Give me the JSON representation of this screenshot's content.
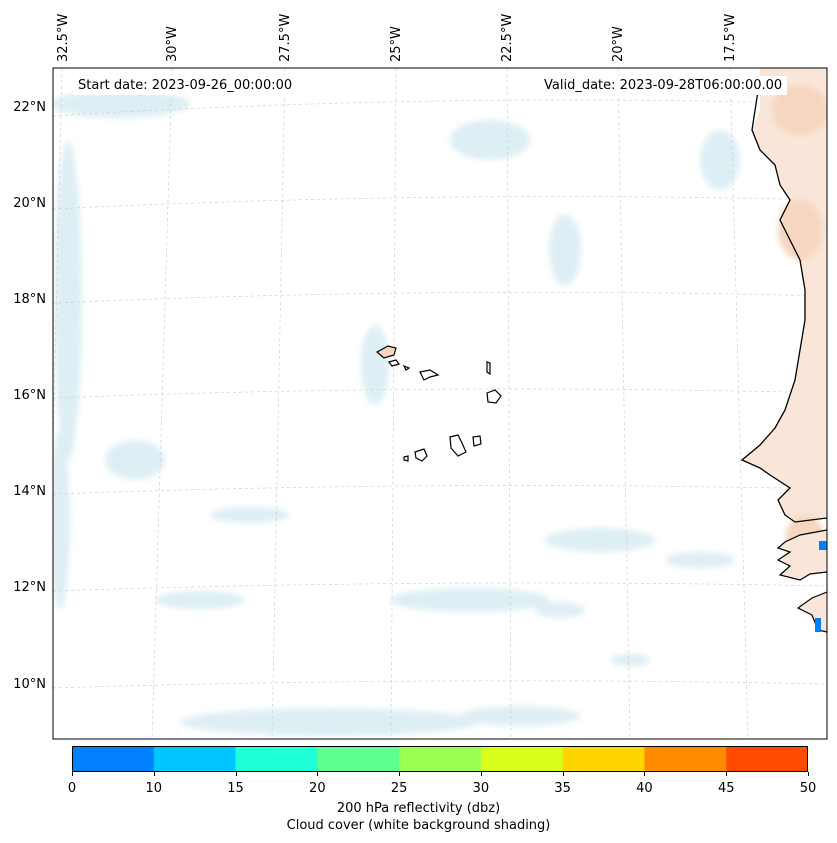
{
  "map": {
    "start_date": "Start date: 2023-09-26_00:00:00",
    "valid_date": "Valid_date: 2023-09-28T06:00:00.00",
    "lon_labels": [
      "32.5°W",
      "30°W",
      "27.5°W",
      "25°W",
      "22.5°W",
      "20°W",
      "17.5°W"
    ],
    "lat_labels": [
      "22°N",
      "20°N",
      "18°N",
      "16°N",
      "14°N",
      "12°N",
      "10°N"
    ],
    "region": "Cabo Verde islands and West African coast",
    "colors": {
      "cloud": "#d8ecf3",
      "land_fill": "#f6d6c0",
      "coastline": "#000000",
      "gridline": "#cfcfcf"
    }
  },
  "colorbar": {
    "ticks": [
      "0",
      "10",
      "15",
      "20",
      "25",
      "30",
      "35",
      "40",
      "45",
      "50"
    ],
    "colors": [
      "#0080ff",
      "#00c6ff",
      "#1effd8",
      "#5fff8e",
      "#9bff52",
      "#d9ff1c",
      "#ffd500",
      "#ff8c00",
      "#ff4b00"
    ],
    "label_line1": "200 hPa reflectivity (dbz)",
    "label_line2": "Cloud cover (white background shading)"
  }
}
